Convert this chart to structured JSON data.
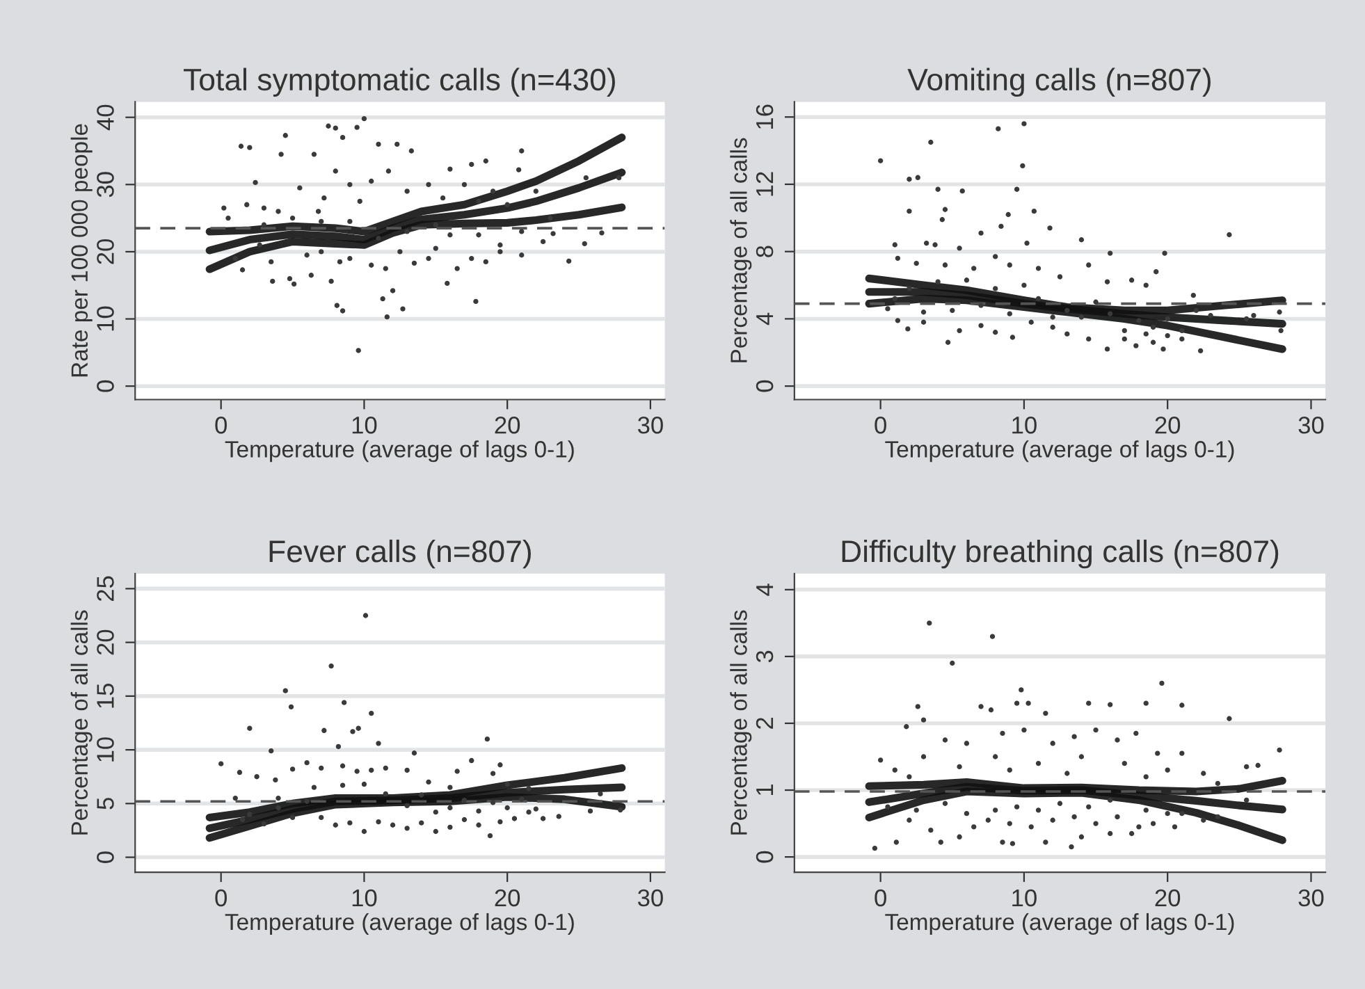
{
  "chart_data": [
    {
      "type": "scatter",
      "title": "Total symptomatic calls (n=430)",
      "xlabel": "Temperature (average of lags 0-1)",
      "ylabel": "Rate per 100 000 people",
      "xlim": [
        -6,
        31
      ],
      "ylim": [
        -2,
        42.3
      ],
      "xticks": [
        0,
        10,
        20,
        30
      ],
      "yticks": [
        0,
        10,
        20,
        30,
        40
      ],
      "grid": "y",
      "legend": false,
      "ref_lines": [
        {
          "axis": "y",
          "value": 23.5,
          "line_style": "dashed",
          "color": "#555555"
        }
      ],
      "series": [
        {
          "marker": "circle",
          "color": "#3a3a3a",
          "x": [
            1.4,
            2,
            4.5,
            7.5,
            8,
            9.5,
            10,
            8.5,
            11,
            12.3,
            13.3,
            21,
            6.5,
            4.2,
            17.5,
            18.5,
            16,
            20.8,
            25.5,
            27.8,
            9.6,
            11.6,
            8.1,
            8.5,
            12.7,
            17.8,
            12,
            11.3,
            24.3,
            25.4,
            26.6,
            3.6,
            5.1,
            6.3,
            7.7,
            15.8,
            0.2,
            0.5,
            1.8,
            2.4,
            3,
            4,
            5.5,
            6.8,
            7.2,
            8,
            9,
            9.7,
            10.5,
            11.7,
            13,
            14.5,
            15.5,
            17,
            18,
            19,
            20,
            22,
            23,
            1,
            1.5,
            2.7,
            3.5,
            4.8,
            6,
            7,
            8.3,
            9,
            10.5,
            11.5,
            12.5,
            13.5,
            14.5,
            15,
            16.5,
            17.5,
            18.5,
            19.5,
            21,
            22.5,
            3,
            5,
            7,
            9,
            11,
            13,
            15,
            16,
            18,
            19.5,
            21,
            23.2
          ],
          "values": [
            35.7,
            35.5,
            37.3,
            38.7,
            38.4,
            38.5,
            39.8,
            37,
            36,
            36,
            35,
            35,
            34.5,
            34.5,
            33,
            33.5,
            32.3,
            32.2,
            31,
            31,
            5.3,
            10.3,
            12,
            11.2,
            11.5,
            12.6,
            14.2,
            13,
            18.6,
            21.2,
            22.8,
            15.6,
            15.2,
            16.5,
            15.6,
            15.3,
            26.5,
            25,
            27,
            30.3,
            26.5,
            26,
            29.5,
            26,
            28,
            32,
            30,
            27.5,
            30.5,
            32,
            29,
            30,
            28,
            30,
            27.5,
            29,
            27,
            29,
            25,
            19,
            17.3,
            21,
            18.5,
            16,
            19.5,
            20,
            18.5,
            19,
            18,
            17.5,
            20,
            18.3,
            19,
            20.5,
            17.5,
            19,
            18.5,
            20,
            19.5,
            21.5,
            24,
            25,
            24.5,
            24.5,
            22,
            23,
            24,
            22.5,
            22.5,
            21,
            23,
            22.7
          ]
        },
        {
          "type": "line",
          "color": "#111111",
          "x": [
            -0.8,
            2,
            5,
            8,
            10,
            12,
            14,
            17,
            20,
            22,
            25,
            28
          ],
          "values": [
            23,
            23.2,
            23.8,
            23.5,
            23,
            24.5,
            26,
            27,
            29,
            30.5,
            33.5,
            37
          ]
        },
        {
          "type": "line",
          "color": "#111111",
          "x": [
            -0.8,
            2,
            5,
            8,
            10,
            12,
            14,
            17,
            20,
            22,
            25,
            28
          ],
          "values": [
            20.2,
            21.8,
            22.6,
            22.3,
            21.8,
            23.5,
            24.8,
            25.5,
            26.5,
            27.5,
            29.5,
            31.8
          ]
        },
        {
          "type": "line",
          "color": "#111111",
          "x": [
            -0.8,
            2,
            5,
            8,
            10,
            12,
            14,
            17,
            20,
            22,
            25,
            28
          ],
          "values": [
            17.4,
            20,
            21.5,
            21.2,
            21,
            22.8,
            24,
            24.2,
            24.3,
            24.7,
            25.5,
            26.6
          ]
        }
      ]
    },
    {
      "type": "scatter",
      "title": "Vomiting calls (n=807)",
      "xlabel": "Temperature (average of lags 0-1)",
      "ylabel": "Percentage of all calls",
      "xlim": [
        -6,
        31
      ],
      "ylim": [
        -0.8,
        16.9
      ],
      "xticks": [
        0,
        10,
        20,
        30
      ],
      "yticks": [
        0,
        4,
        8,
        12,
        16
      ],
      "grid": "y",
      "legend": false,
      "ref_lines": [
        {
          "axis": "y",
          "value": 4.9,
          "line_style": "dashed",
          "color": "#555555"
        }
      ],
      "series": [
        {
          "marker": "circle",
          "color": "#3a3a3a",
          "x": [
            0,
            2,
            2.6,
            3.5,
            4,
            5.7,
            8.2,
            10,
            9.9,
            9.5,
            10.7,
            2,
            4.5,
            4.3,
            8.4,
            8.9,
            11.8,
            14,
            16,
            19.8,
            24.3,
            1,
            3.2,
            3.8,
            5.5,
            7,
            10.2,
            14.5,
            19.2,
            21.8,
            1.2,
            2.5,
            4.5,
            6.5,
            8,
            9,
            11,
            12.5,
            15.8,
            17.5,
            18.5,
            0.5,
            1.2,
            1.9,
            3,
            4.7,
            5.5,
            7,
            8,
            9.2,
            10.5,
            12,
            13,
            14.5,
            15.8,
            17,
            17.8,
            19,
            19.7,
            21,
            22.3,
            25.5,
            26,
            27.8,
            27.9,
            2,
            4,
            6,
            8,
            10,
            11,
            13,
            15,
            16,
            18,
            19,
            20,
            21,
            22,
            23,
            1,
            3,
            5,
            7,
            9,
            12,
            14,
            17,
            18.5,
            20
          ],
          "values": [
            13.4,
            12.3,
            12.4,
            14.5,
            11.7,
            11.6,
            15.3,
            15.6,
            13.1,
            11.7,
            10.4,
            10.4,
            10.5,
            9.9,
            9.5,
            10.2,
            9.4,
            8.7,
            7.9,
            7.9,
            9,
            8.4,
            8.5,
            8.4,
            8.2,
            9.1,
            8.5,
            7.2,
            6.8,
            5.4,
            7.6,
            7.3,
            7.2,
            7,
            7.7,
            7.2,
            7,
            6.5,
            6.2,
            6.3,
            6,
            4.6,
            3.9,
            3.4,
            3.8,
            2.6,
            3.3,
            3.6,
            3.2,
            2.9,
            3.8,
            3.5,
            3.1,
            2.8,
            2.2,
            2.8,
            2.4,
            2.6,
            2.2,
            2.8,
            2.1,
            4,
            4.2,
            4.4,
            3.3,
            5.8,
            6.2,
            6.3,
            5.8,
            6,
            5.2,
            4.5,
            5,
            4.3,
            3.9,
            3.5,
            4,
            3.3,
            4.5,
            4.2,
            5.2,
            4.4,
            4.5,
            4.8,
            4.3,
            4.1,
            4.1,
            3.3,
            3.1,
            3
          ]
        },
        {
          "type": "line",
          "color": "#111111",
          "x": [
            -0.8,
            3,
            6,
            10,
            13,
            17,
            20,
            24,
            28
          ],
          "values": [
            6.4,
            6,
            5.7,
            5.1,
            4.7,
            4.5,
            4.5,
            4.8,
            5.1
          ]
        },
        {
          "type": "line",
          "color": "#111111",
          "x": [
            -0.8,
            3,
            6,
            10,
            13,
            17,
            20,
            24,
            28
          ],
          "values": [
            5.6,
            5.6,
            5.4,
            4.9,
            4.6,
            4.3,
            4.1,
            3.9,
            3.7
          ]
        },
        {
          "type": "line",
          "color": "#111111",
          "x": [
            -0.8,
            3,
            6,
            10,
            13,
            17,
            20,
            24,
            28
          ],
          "values": [
            4.9,
            5.2,
            5.1,
            4.7,
            4.4,
            4,
            3.6,
            2.9,
            2.2
          ]
        }
      ]
    },
    {
      "type": "scatter",
      "title": "Fever calls (n=807)",
      "xlabel": "Temperature (average of lags 0-1)",
      "ylabel": "Percentage of all calls",
      "xlim": [
        -6,
        31
      ],
      "ylim": [
        -1.4,
        26.4
      ],
      "xticks": [
        0,
        10,
        20,
        30
      ],
      "yticks": [
        0,
        5,
        10,
        15,
        20,
        25
      ],
      "grid": "y",
      "legend": false,
      "ref_lines": [
        {
          "axis": "y",
          "value": 5.2,
          "line_style": "dashed",
          "color": "#555555"
        }
      ],
      "series": [
        {
          "marker": "circle",
          "color": "#3a3a3a",
          "x": [
            0,
            2,
            4.5,
            4.9,
            7.7,
            8.6,
            10.1,
            10.5,
            7.2,
            9.2,
            9.6,
            3.5,
            8.2,
            11,
            13.5,
            18.6,
            17.5,
            19.5,
            16.5,
            1.3,
            2.5,
            3.8,
            5,
            6,
            7,
            8.5,
            9.5,
            10.5,
            11.5,
            13,
            14.5,
            16,
            19,
            20,
            21.5,
            1,
            2,
            3,
            4,
            5,
            6,
            7,
            8,
            9,
            10,
            11,
            12,
            13,
            14,
            15,
            16,
            17,
            18,
            18.8,
            19.5,
            20.5,
            21.5,
            22.5,
            23.6,
            25.8,
            26.5,
            27.9,
            1.5,
            4,
            6.5,
            8.5,
            10,
            11.5,
            13,
            14,
            15,
            16,
            17,
            18,
            19,
            20,
            21,
            22
          ],
          "values": [
            8.7,
            12,
            15.5,
            14,
            17.8,
            14.4,
            22.5,
            13.4,
            11.8,
            11.7,
            12,
            9.9,
            10.3,
            10.6,
            9.7,
            11,
            9,
            8.6,
            8,
            7.9,
            7.5,
            7.2,
            8.2,
            8.8,
            8.3,
            8.5,
            8,
            8.1,
            8.3,
            8.1,
            7,
            6.5,
            7.8,
            6.8,
            6.4,
            5.5,
            4,
            3.1,
            4.6,
            3.7,
            5.2,
            3.7,
            3,
            3.2,
            2.4,
            3.3,
            3,
            2.7,
            3.2,
            2.4,
            2.8,
            3.5,
            3,
            2,
            3.3,
            3.6,
            4.2,
            3.6,
            3.8,
            4.3,
            5.9,
            4.4,
            3.5,
            5.5,
            6.5,
            6.7,
            6.8,
            5.9,
            4.8,
            5.8,
            4.2,
            4.6,
            5.3,
            4.3,
            5.1,
            4.6,
            5.4,
            4.5
          ]
        },
        {
          "type": "line",
          "color": "#111111",
          "x": [
            -0.8,
            2,
            5,
            8,
            12,
            16,
            20,
            24,
            28
          ],
          "values": [
            3.7,
            4.2,
            5,
            5.5,
            5.5,
            5.8,
            6.7,
            7.4,
            8.3
          ]
        },
        {
          "type": "line",
          "color": "#111111",
          "x": [
            -0.8,
            2,
            5,
            8,
            12,
            16,
            20,
            24,
            28
          ],
          "values": [
            2.7,
            3.5,
            4.5,
            5.2,
            5.3,
            5.5,
            6,
            6.3,
            6.5
          ]
        },
        {
          "type": "line",
          "color": "#111111",
          "x": [
            -0.8,
            2,
            5,
            8,
            12,
            16,
            20,
            24,
            28
          ],
          "values": [
            1.8,
            2.9,
            4.1,
            4.9,
            5.1,
            5.2,
            5.6,
            5.4,
            4.7
          ]
        }
      ]
    },
    {
      "type": "scatter",
      "title": "Difficulty breathing calls (n=807)",
      "xlabel": "Temperature (average of lags 0-1)",
      "ylabel": "Percentage of all calls",
      "xlim": [
        -6,
        31
      ],
      "ylim": [
        -0.23,
        4.24
      ],
      "xticks": [
        0,
        10,
        20,
        30
      ],
      "yticks": [
        0,
        1,
        2,
        3,
        4
      ],
      "grid": "y",
      "legend": false,
      "ref_lines": [
        {
          "axis": "y",
          "value": 0.98,
          "line_style": "dashed",
          "color": "#555555"
        }
      ],
      "series": [
        {
          "marker": "circle",
          "color": "#3a3a3a",
          "x": [
            3.4,
            7.8,
            5,
            9.8,
            19.6,
            24.3,
            2.6,
            9.5,
            10.3,
            14.5,
            16,
            18.5,
            21,
            11.5,
            7,
            7.7,
            1.8,
            3,
            4.5,
            6,
            8.5,
            10,
            12,
            13.5,
            15,
            16.5,
            17.8,
            19.3,
            21,
            22.5,
            25.5,
            26.3,
            27.8,
            0,
            1,
            2,
            3,
            5.5,
            8,
            9,
            11,
            13,
            14,
            17,
            18.5,
            20,
            23.5,
            -0.4,
            1.1,
            4.2,
            8.5,
            9.2,
            11.5,
            13.3,
            14,
            16,
            17.5,
            2,
            3.5,
            5.5,
            6.5,
            7.5,
            9,
            10.5,
            12,
            13.5,
            15,
            16.5,
            18,
            19,
            20.5,
            21,
            22.5,
            23.5,
            25.5,
            0.5,
            2.5,
            4.5,
            6,
            8,
            9.5,
            11,
            12.5,
            14.5,
            16,
            18.5,
            20
          ],
          "values": [
            3.5,
            3.3,
            2.9,
            2.5,
            2.6,
            2.07,
            2.25,
            2.3,
            2.3,
            2.3,
            2.28,
            2.3,
            2.27,
            2.15,
            2.25,
            2.2,
            1.95,
            2.05,
            1.75,
            1.7,
            1.85,
            1.9,
            1.7,
            1.8,
            1.9,
            1.75,
            1.85,
            1.55,
            1.55,
            1.25,
            1.35,
            1.37,
            1.6,
            1.45,
            1.3,
            1.2,
            1.5,
            1.35,
            1.5,
            1.3,
            1.4,
            1.25,
            1.5,
            1.4,
            1.2,
            1.3,
            1.1,
            0.13,
            0.22,
            0.22,
            0.22,
            0.2,
            0.22,
            0.15,
            0.3,
            0.35,
            0.35,
            0.55,
            0.4,
            0.3,
            0.45,
            0.55,
            0.5,
            0.45,
            0.55,
            0.6,
            0.5,
            0.6,
            0.45,
            0.5,
            0.45,
            0.65,
            0.55,
            0.6,
            0.85,
            0.75,
            0.7,
            0.8,
            0.65,
            0.7,
            0.75,
            0.7,
            0.8,
            0.75,
            0.85,
            0.7,
            0.65
          ]
        },
        {
          "type": "line",
          "color": "#111111",
          "x": [
            -0.8,
            3,
            6,
            10,
            14,
            18,
            22,
            25,
            28
          ],
          "values": [
            1.06,
            1.08,
            1.12,
            1.03,
            1.04,
            1,
            0.98,
            1.02,
            1.14
          ]
        },
        {
          "type": "line",
          "color": "#111111",
          "x": [
            -0.8,
            3,
            6,
            10,
            14,
            18,
            22,
            25,
            28
          ],
          "values": [
            0.82,
            0.95,
            1.05,
            0.99,
            1,
            0.92,
            0.84,
            0.77,
            0.71
          ]
        },
        {
          "type": "line",
          "color": "#111111",
          "x": [
            -0.8,
            3,
            6,
            10,
            14,
            18,
            22,
            25,
            28
          ],
          "values": [
            0.59,
            0.85,
            0.98,
            0.95,
            0.96,
            0.85,
            0.66,
            0.47,
            0.25
          ]
        }
      ]
    }
  ]
}
